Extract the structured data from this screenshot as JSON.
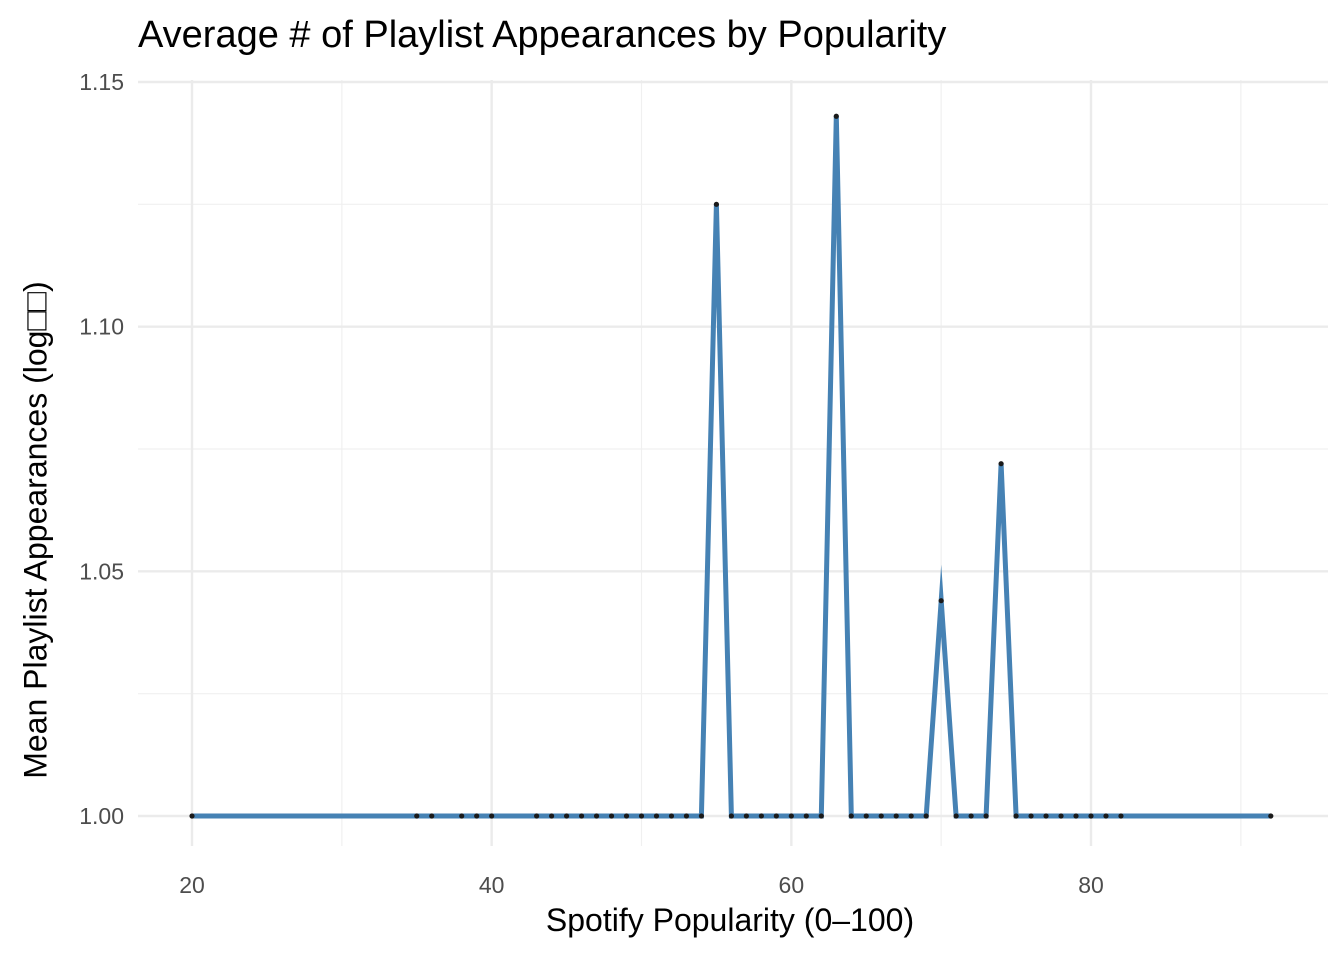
{
  "chart_data": {
    "type": "line",
    "title": "Average # of Playlist Appearances by Popularity",
    "xlabel": "Spotify Popularity (0–100)",
    "ylabel": "Mean Playlist Appearances (log□□)",
    "xlim": [
      17,
      93
    ],
    "ylim": [
      0.993,
      1.15
    ],
    "x_ticks": [
      "20",
      "40",
      "60",
      "80"
    ],
    "x_tick_values": [
      20,
      40,
      60,
      80
    ],
    "y_ticks": [
      "1.00",
      "1.05",
      "1.10",
      "1.15"
    ],
    "y_tick_values": [
      1.0,
      1.05,
      1.1,
      1.15
    ],
    "grid": true,
    "line_color": "#4682B4",
    "point_color": "#1a1a1a",
    "x": [
      20,
      35,
      36,
      38,
      39,
      40,
      43,
      44,
      45,
      46,
      47,
      48,
      49,
      50,
      51,
      52,
      53,
      54,
      55,
      56,
      57,
      58,
      59,
      60,
      61,
      62,
      63,
      64,
      65,
      66,
      67,
      68,
      69,
      70,
      71,
      72,
      73,
      74,
      75,
      76,
      77,
      78,
      79,
      80,
      81,
      82,
      92
    ],
    "y": [
      1.0,
      1.0,
      1.0,
      1.0,
      1.0,
      1.0,
      1.0,
      1.0,
      1.0,
      1.0,
      1.0,
      1.0,
      1.0,
      1.0,
      1.0,
      1.0,
      1.0,
      1.0,
      1.125,
      1.0,
      1.0,
      1.0,
      1.0,
      1.0,
      1.0,
      1.0,
      1.143,
      1.0,
      1.0,
      1.0,
      1.0,
      1.0,
      1.0,
      1.044,
      1.0,
      1.0,
      1.0,
      1.072,
      1.0,
      1.0,
      1.0,
      1.0,
      1.0,
      1.0,
      1.0,
      1.0,
      1.0
    ]
  }
}
